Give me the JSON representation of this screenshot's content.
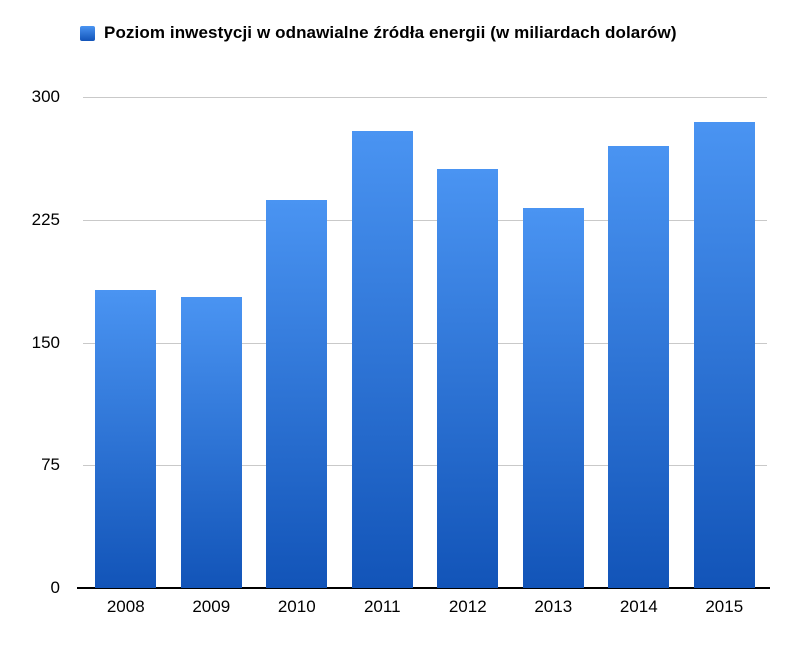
{
  "chart_data": {
    "type": "bar",
    "title": "Poziom inwestycji w odnawialne źródła energii (w miliardach dolarów)",
    "categories": [
      "2008",
      "2009",
      "2010",
      "2011",
      "2012",
      "2013",
      "2014",
      "2015"
    ],
    "values": [
      182,
      178,
      237,
      279,
      256,
      232,
      270,
      285
    ],
    "xlabel": "",
    "ylabel": "",
    "ylim": [
      0,
      300
    ],
    "yticks": [
      0,
      75,
      150,
      225,
      300
    ],
    "grid": true,
    "legend_position": "top-left",
    "colors": {
      "bar_gradient_top": "#4a94f2",
      "bar_gradient_bottom": "#1254b8",
      "gridline": "#c9c9c9",
      "axis_line": "#000000",
      "text": "#000000",
      "background": "#ffffff"
    }
  }
}
